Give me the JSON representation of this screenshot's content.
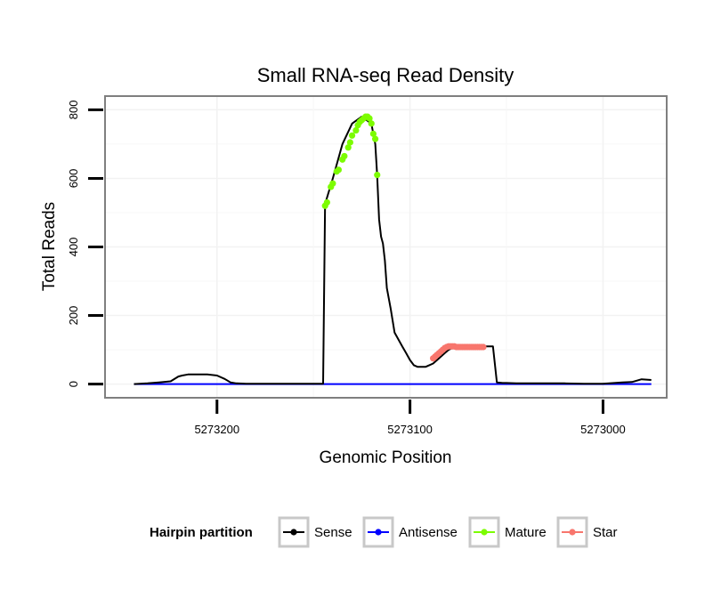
{
  "chart_data": {
    "type": "line",
    "title": "Small RNA-seq Read Density",
    "xlabel": "Genomic Position",
    "ylabel": "Total Reads",
    "x_reversed": true,
    "xlim": [
      5273258,
      5272967
    ],
    "ylim": [
      -40,
      840
    ],
    "xticks": [
      5273200,
      5273100,
      5273000
    ],
    "yticks": [
      0,
      200,
      400,
      600,
      800
    ],
    "x_tick_labels": [
      "5273200",
      "5273100",
      "5273000"
    ],
    "y_tick_labels": [
      "0",
      "200",
      "400",
      "600",
      "800"
    ],
    "legend": {
      "title": "Hairpin partition",
      "position": "bottom",
      "entries": [
        {
          "label": "Sense",
          "color": "#000000"
        },
        {
          "label": "Antisense",
          "color": "#0000ff"
        },
        {
          "label": "Mature",
          "color": "#7cfc00"
        },
        {
          "label": "Star",
          "color": "#f8766d"
        }
      ]
    },
    "series": [
      {
        "name": "Sense",
        "color": "#000000",
        "style": "line",
        "x": [
          5273243,
          5273236,
          5273230,
          5273224,
          5273220,
          5273218,
          5273215,
          5273210,
          5273205,
          5273200,
          5273196,
          5273193,
          5273190,
          5273185,
          5273180,
          5273175,
          5273170,
          5273165,
          5273160,
          5273155,
          5273150,
          5273145,
          5273144,
          5273140,
          5273135,
          5273130,
          5273125,
          5273120,
          5273118,
          5273117,
          5273116,
          5273115,
          5273114,
          5273113,
          5273112,
          5273110,
          5273108,
          5273106,
          5273104,
          5273102,
          5273100,
          5273098,
          5273096,
          5273094,
          5273092,
          5273090,
          5273088,
          5273086,
          5273084,
          5273082,
          5273080,
          5273078,
          5273076,
          5273074,
          5273072,
          5273070,
          5273068,
          5273066,
          5273064,
          5273062,
          5273060,
          5273057,
          5273055,
          5273052,
          5273050,
          5273045,
          5273035,
          5273030,
          5273020,
          5273010,
          5273005,
          5273000,
          5272990,
          5272985,
          5272980,
          5272975
        ],
        "y": [
          0,
          2,
          5,
          8,
          22,
          25,
          28,
          28,
          28,
          25,
          15,
          5,
          2,
          1,
          1,
          1,
          1,
          1,
          1,
          1,
          1,
          1,
          525,
          600,
          700,
          760,
          780,
          760,
          700,
          610,
          480,
          430,
          410,
          360,
          280,
          220,
          150,
          130,
          110,
          90,
          70,
          55,
          50,
          50,
          50,
          55,
          60,
          70,
          80,
          90,
          100,
          105,
          108,
          110,
          110,
          110,
          110,
          110,
          110,
          110,
          110,
          110,
          5,
          3,
          3,
          2,
          2,
          2,
          2,
          1,
          1,
          1,
          5,
          6,
          14,
          12
        ]
      },
      {
        "name": "Antisense",
        "color": "#0000ff",
        "style": "line",
        "x": [
          5273243,
          5272975
        ],
        "y": [
          0,
          0
        ]
      },
      {
        "name": "Mature",
        "color": "#7cfc00",
        "style": "points",
        "x": [
          5273144,
          5273143,
          5273141,
          5273140,
          5273138,
          5273137,
          5273135,
          5273134,
          5273132,
          5273131,
          5273130,
          5273128,
          5273127,
          5273126,
          5273125,
          5273124,
          5273123,
          5273122,
          5273121,
          5273120,
          5273119,
          5273118,
          5273117
        ],
        "y": [
          520,
          530,
          575,
          585,
          620,
          625,
          655,
          665,
          690,
          705,
          725,
          740,
          755,
          765,
          770,
          775,
          780,
          780,
          775,
          760,
          730,
          715,
          610
        ]
      },
      {
        "name": "Star",
        "color": "#f8766d",
        "style": "points",
        "x": [
          5273088,
          5273087,
          5273086,
          5273085,
          5273084,
          5273083,
          5273082,
          5273081,
          5273080,
          5273079,
          5273078,
          5273077,
          5273076,
          5273075,
          5273074,
          5273073,
          5273072,
          5273071,
          5273070,
          5273069,
          5273068,
          5273067,
          5273066,
          5273065,
          5273064,
          5273063,
          5273062
        ],
        "y": [
          75,
          80,
          85,
          90,
          95,
          100,
          105,
          108,
          110,
          110,
          110,
          110,
          108,
          108,
          108,
          108,
          108,
          108,
          108,
          108,
          108,
          108,
          108,
          108,
          108,
          108,
          108
        ]
      }
    ]
  }
}
